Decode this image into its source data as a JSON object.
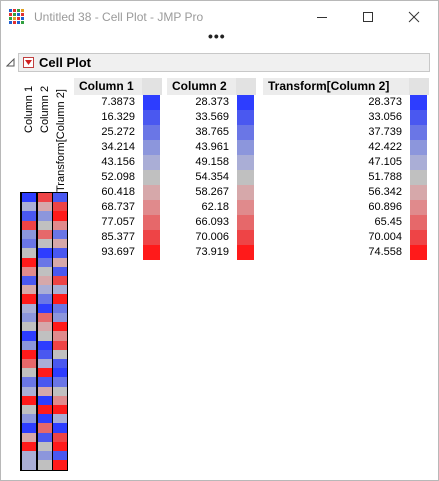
{
  "window": {
    "title": "Untitled 38 - Cell Plot - JMP Pro",
    "menu_more": "•••"
  },
  "report": {
    "title": "Cell Plot",
    "columns": [
      "Column 1",
      "Column 2",
      "Transform[Column 2]"
    ]
  },
  "legend_tables": [
    {
      "header": "Column 1",
      "values": [
        "7.3873",
        "16.329",
        "25.272",
        "34.214",
        "43.156",
        "52.098",
        "60.418",
        "68.737",
        "77.057",
        "85.377",
        "93.697"
      ]
    },
    {
      "header": "Column 2",
      "values": [
        "28.373",
        "33.569",
        "38.765",
        "43.961",
        "49.158",
        "54.354",
        "58.267",
        "62.18",
        "66.093",
        "70.006",
        "73.919"
      ]
    },
    {
      "header": "Transform[Column 2]",
      "values": [
        "28.373",
        "33.056",
        "37.739",
        "42.422",
        "47.105",
        "51.788",
        "56.342",
        "60.896",
        "65.45",
        "70.004",
        "74.558"
      ]
    }
  ],
  "color_scale": [
    "#2d3dff",
    "#4a58f0",
    "#6a76e6",
    "#8c96dc",
    "#aaaed6",
    "#c0c0c0",
    "#d6a8aa",
    "#e08a8c",
    "#e6686a",
    "#ee4446",
    "#ff1a1a"
  ],
  "cell_plot_levels": [
    [
      0,
      9,
      1
    ],
    [
      4,
      6,
      9
    ],
    [
      1,
      3,
      10
    ],
    [
      9,
      5,
      7
    ],
    [
      3,
      8,
      2
    ],
    [
      2,
      5,
      6
    ],
    [
      5,
      0,
      1
    ],
    [
      10,
      2,
      6
    ],
    [
      7,
      5,
      1
    ],
    [
      1,
      6,
      9
    ],
    [
      6,
      4,
      4
    ],
    [
      10,
      2,
      10
    ],
    [
      4,
      0,
      2
    ],
    [
      3,
      8,
      3
    ],
    [
      5,
      6,
      10
    ],
    [
      0,
      5,
      7
    ],
    [
      3,
      0,
      9
    ],
    [
      10,
      1,
      5
    ],
    [
      8,
      4,
      1
    ],
    [
      5,
      10,
      0
    ],
    [
      2,
      1,
      2
    ],
    [
      4,
      6,
      5
    ],
    [
      10,
      0,
      7
    ],
    [
      5,
      10,
      10
    ],
    [
      3,
      0,
      4
    ],
    [
      0,
      8,
      0
    ],
    [
      6,
      1,
      9
    ],
    [
      10,
      5,
      10
    ],
    [
      4,
      3,
      1
    ],
    [
      4,
      5,
      10
    ]
  ]
}
